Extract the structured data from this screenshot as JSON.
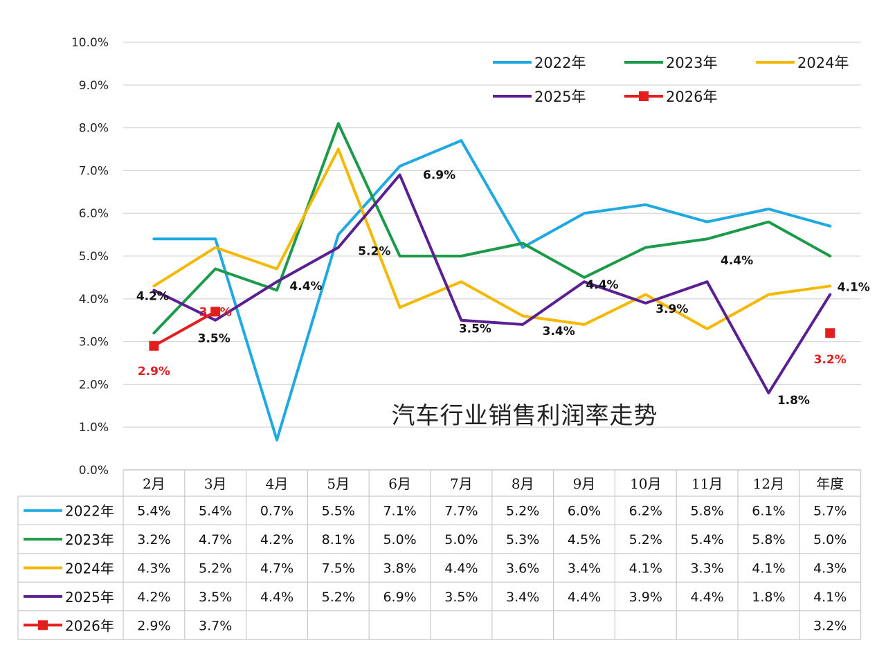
{
  "chart_data": {
    "type": "line",
    "title": "汽车行业销售利润率走势",
    "categories": [
      "2月",
      "3月",
      "4月",
      "5月",
      "6月",
      "7月",
      "8月",
      "9月",
      "10月",
      "11月",
      "12月",
      "年度"
    ],
    "y_ticks": [
      "0.0%",
      "1.0%",
      "2.0%",
      "3.0%",
      "4.0%",
      "5.0%",
      "6.0%",
      "7.0%",
      "8.0%",
      "9.0%",
      "10.0%"
    ],
    "ylim": [
      0,
      10
    ],
    "grid": true,
    "legend_position": "top-right",
    "series": [
      {
        "name": "2022年",
        "color": "#1fa9e0",
        "marker": "none",
        "values": [
          5.4,
          5.4,
          0.7,
          5.5,
          7.1,
          7.7,
          5.2,
          6.0,
          6.2,
          5.8,
          6.1,
          5.7
        ],
        "table_values": [
          "5.4%",
          "5.4%",
          "0.7%",
          "5.5%",
          "7.1%",
          "7.7%",
          "5.2%",
          "6.0%",
          "6.2%",
          "5.8%",
          "6.1%",
          "5.7%"
        ]
      },
      {
        "name": "2023年",
        "color": "#1b9a4a",
        "marker": "none",
        "values": [
          3.2,
          4.7,
          4.2,
          8.1,
          5.0,
          5.0,
          5.3,
          4.5,
          5.2,
          5.4,
          5.8,
          5.0
        ],
        "table_values": [
          "3.2%",
          "4.7%",
          "4.2%",
          "8.1%",
          "5.0%",
          "5.0%",
          "5.3%",
          "4.5%",
          "5.2%",
          "5.4%",
          "5.8%",
          "5.0%"
        ]
      },
      {
        "name": "2024年",
        "color": "#f5b800",
        "marker": "none",
        "values": [
          4.3,
          5.2,
          4.7,
          7.5,
          3.8,
          4.4,
          3.6,
          3.4,
          4.1,
          3.3,
          4.1,
          4.3
        ],
        "table_values": [
          "4.3%",
          "5.2%",
          "4.7%",
          "7.5%",
          "3.8%",
          "4.4%",
          "3.6%",
          "3.4%",
          "4.1%",
          "3.3%",
          "4.1%",
          "4.3%"
        ]
      },
      {
        "name": "2025年",
        "color": "#5a1f91",
        "marker": "none",
        "values": [
          4.2,
          3.5,
          4.4,
          5.2,
          6.9,
          3.5,
          3.4,
          4.4,
          3.9,
          4.4,
          1.8,
          4.1
        ],
        "table_values": [
          "4.2%",
          "3.5%",
          "4.4%",
          "5.2%",
          "6.9%",
          "3.5%",
          "3.4%",
          "4.4%",
          "3.9%",
          "4.4%",
          "1.8%",
          "4.1%"
        ]
      },
      {
        "name": "2026年",
        "color": "#e41e1e",
        "marker": "square",
        "values": [
          2.9,
          3.7,
          null,
          null,
          null,
          null,
          null,
          null,
          null,
          null,
          null,
          3.2
        ],
        "table_values": [
          "2.9%",
          "3.7%",
          "",
          "",
          "",
          "",
          "",
          "",
          "",
          "",
          "",
          "3.2%"
        ]
      }
    ],
    "annotations": [
      {
        "series": "2025年",
        "index": 0,
        "text": "4.2%"
      },
      {
        "series": "2025年",
        "index": 1,
        "text": "3.5%"
      },
      {
        "series": "2025年",
        "index": 2,
        "text": "4.4%"
      },
      {
        "series": "2025年",
        "index": 3,
        "text": "5.2%"
      },
      {
        "series": "2025年",
        "index": 4,
        "text": "6.9%"
      },
      {
        "series": "2025年",
        "index": 5,
        "text": "3.5%"
      },
      {
        "series": "2025年",
        "index": 6,
        "text": "3.4%"
      },
      {
        "series": "2025年",
        "index": 7,
        "text": "4.4%"
      },
      {
        "series": "2025年",
        "index": 8,
        "text": "3.9%"
      },
      {
        "series": "2025年",
        "index": 9,
        "text": "4.4%"
      },
      {
        "series": "2025年",
        "index": 10,
        "text": "1.8%"
      },
      {
        "series": "2025年",
        "index": 11,
        "text": "4.1%"
      },
      {
        "series": "2026年",
        "index": 0,
        "text": "2.9%"
      },
      {
        "series": "2026年",
        "index": 1,
        "text": "3.7%"
      },
      {
        "series": "2026年",
        "index": 11,
        "text": "3.2%"
      }
    ]
  }
}
